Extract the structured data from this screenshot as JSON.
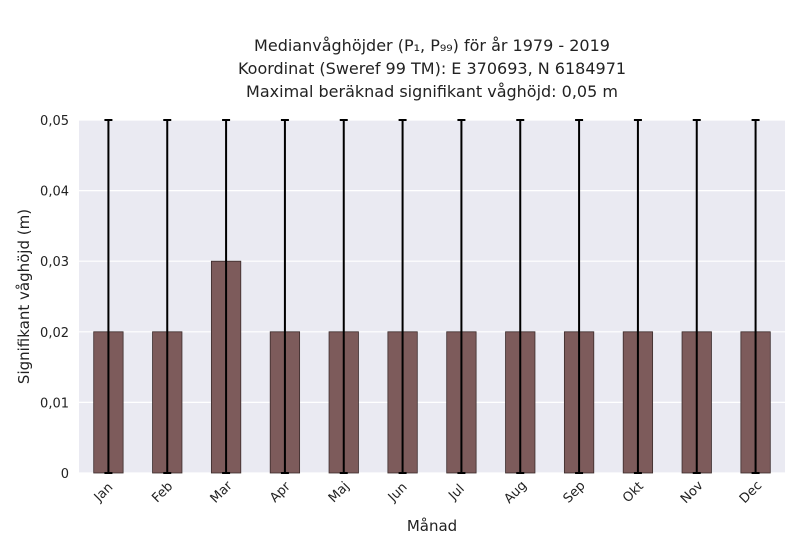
{
  "chart_data": {
    "type": "bar",
    "title": [
      "Medianvåghöjder (P₁, P₉₉) för år 1979 - 2019",
      "Koordinat (Sweref 99 TM): E 370693, N 6184971",
      "Maximal beräknad signifikant våghöjd: 0,05 m"
    ],
    "xlabel": "Månad",
    "ylabel": "Signifikant våghöjd (m)",
    "categories": [
      "Jan",
      "Feb",
      "Mar",
      "Apr",
      "Maj",
      "Jun",
      "Jul",
      "Aug",
      "Sep",
      "Okt",
      "Nov",
      "Dec"
    ],
    "values": [
      0.02,
      0.02,
      0.03,
      0.02,
      0.02,
      0.02,
      0.02,
      0.02,
      0.02,
      0.02,
      0.02,
      0.02
    ],
    "error_low": [
      0,
      0,
      0,
      0,
      0,
      0,
      0,
      0,
      0,
      0,
      0,
      0
    ],
    "error_high": [
      0.05,
      0.05,
      0.05,
      0.05,
      0.05,
      0.05,
      0.05,
      0.05,
      0.05,
      0.05,
      0.05,
      0.05
    ],
    "ylim": [
      0,
      0.05
    ],
    "yticks": [
      0,
      0.01,
      0.02,
      0.03,
      0.04,
      0.05
    ],
    "ytick_labels": [
      "0",
      "0,01",
      "0,02",
      "0,03",
      "0,04",
      "0,05"
    ],
    "grid": true,
    "colors": {
      "bar": "#7d5b5b",
      "bar_edge": "#3a2a2a",
      "error": "#000000",
      "plot_bg": "#eaeaf2",
      "grid": "#ffffff"
    }
  }
}
